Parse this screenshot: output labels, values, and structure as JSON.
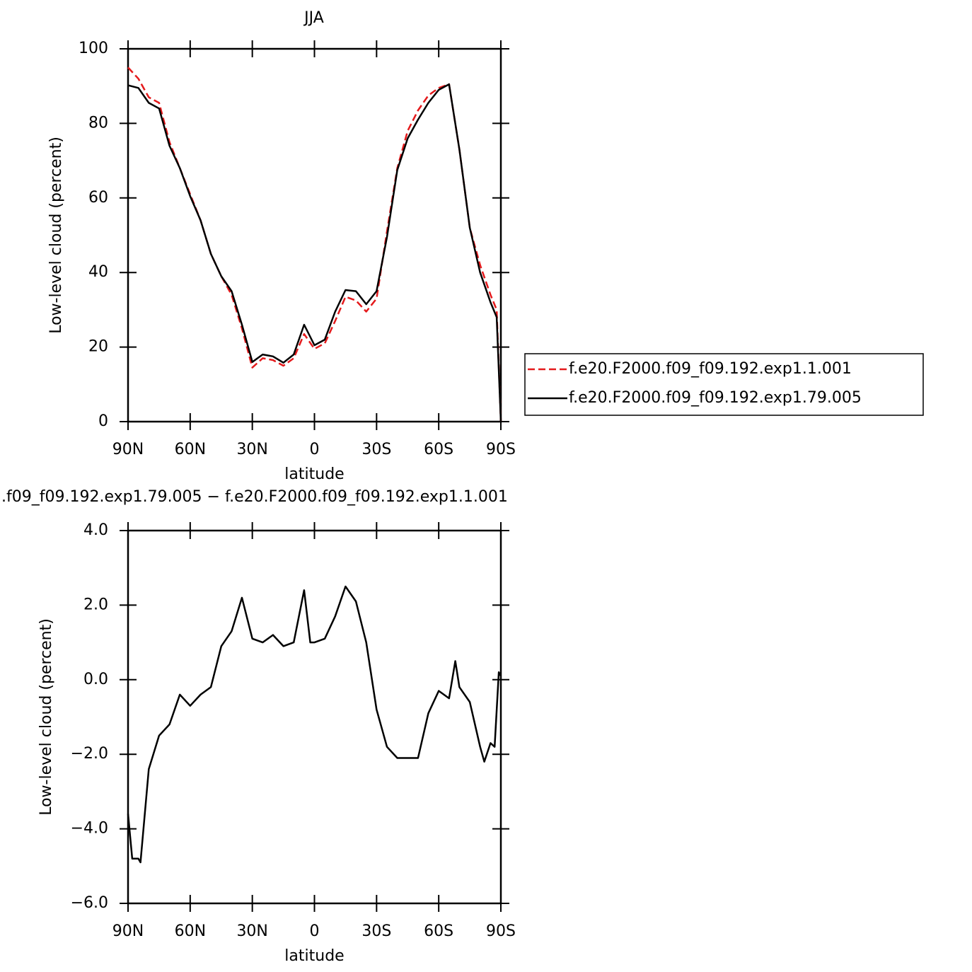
{
  "chart_data": [
    {
      "type": "line",
      "title": "JJA",
      "xlabel": "latitude",
      "ylabel": "Low-level cloud (percent)",
      "x": [
        90,
        85,
        80,
        75,
        70,
        65,
        60,
        55,
        50,
        45,
        40,
        35,
        30,
        25,
        20,
        15,
        10,
        5,
        0,
        -5,
        -10,
        -15,
        -20,
        -25,
        -30,
        -35,
        -40,
        -45,
        -50,
        -55,
        -60,
        -65,
        -70,
        -75,
        -80,
        -85,
        -88,
        -90
      ],
      "series": [
        {
          "name": "f.e20.F2000.f09_f09.192.exp1.1.001",
          "color": "#e41a1c",
          "dashed": true,
          "values": [
            95,
            92,
            87,
            85.5,
            75,
            68,
            61,
            54,
            45,
            39,
            34,
            25,
            14.5,
            17,
            16.5,
            15,
            17,
            23.5,
            19.5,
            21,
            27,
            33.5,
            32.5,
            29.5,
            33,
            51,
            68,
            78,
            83.5,
            87.5,
            89.5,
            90.5,
            73,
            52,
            42,
            34,
            30,
            0
          ]
        },
        {
          "name": "f.e20.F2000.f09_f09.192.exp1.79.005",
          "color": "#000000",
          "dashed": false,
          "values": [
            90.2,
            89.5,
            85.5,
            84,
            74,
            68,
            60.5,
            54,
            45,
            39,
            35,
            26,
            16,
            18,
            17.5,
            15.8,
            18,
            26,
            20.5,
            22,
            29.5,
            35.3,
            35,
            31.5,
            35,
            49.5,
            67.5,
            76,
            81,
            85.5,
            89,
            90.5,
            73,
            52,
            40,
            32,
            28,
            0
          ]
        }
      ],
      "xlim": [
        90,
        -90
      ],
      "xticks": [
        {
          "value": 90,
          "label": "90N"
        },
        {
          "value": 60,
          "label": "60N"
        },
        {
          "value": 30,
          "label": "30N"
        },
        0,
        {
          "value": -30,
          "label": "30S"
        },
        {
          "value": -60,
          "label": "60S"
        },
        {
          "value": -90,
          "label": "90S"
        }
      ],
      "ylim": [
        0,
        100
      ],
      "yticks": [
        0,
        20,
        40,
        60,
        80,
        100
      ],
      "legend": "right"
    },
    {
      "type": "line",
      "title": ".f09_f09.192.exp1.79.005 − f.e20.F2000.f09_f09.192.exp1.1.001",
      "xlabel": "latitude",
      "ylabel": "Low-level cloud (percent)",
      "x": [
        90,
        88,
        85,
        84,
        80,
        75,
        70,
        65,
        60,
        55,
        50,
        45,
        40,
        35,
        30,
        25,
        20,
        15,
        10,
        5,
        2,
        0,
        -5,
        -10,
        -15,
        -20,
        -25,
        -30,
        -35,
        -40,
        -45,
        -50,
        -55,
        -60,
        -65,
        -68,
        -70,
        -75,
        -80,
        -82,
        -85,
        -87,
        -89,
        -90
      ],
      "series": [
        {
          "color": "#000000",
          "dashed": false,
          "values": [
            -3.6,
            -4.8,
            -4.8,
            -4.9,
            -2.4,
            -1.5,
            -1.2,
            -0.4,
            -0.7,
            -0.4,
            -0.2,
            0.9,
            1.3,
            2.2,
            1.1,
            1.0,
            1.2,
            0.9,
            1.0,
            2.4,
            1.0,
            1.0,
            1.1,
            1.7,
            2.5,
            2.1,
            1.0,
            -0.8,
            -1.8,
            -2.1,
            -2.1,
            -2.1,
            -0.9,
            -0.3,
            -0.5,
            0.5,
            -0.2,
            -0.6,
            -1.8,
            -2.2,
            -1.7,
            -1.8,
            0.2,
            0.1
          ]
        }
      ],
      "xlim": [
        90,
        -90
      ],
      "xticks": [
        {
          "value": 90,
          "label": "90N"
        },
        {
          "value": 60,
          "label": "60N"
        },
        {
          "value": 30,
          "label": "30N"
        },
        0,
        {
          "value": -30,
          "label": "30S"
        },
        {
          "value": -60,
          "label": "60S"
        },
        {
          "value": -90,
          "label": "90S"
        }
      ],
      "ylim": [
        -6,
        4
      ],
      "yticks": [
        {
          "value": -6,
          "label": "−6.0"
        },
        {
          "value": -4,
          "label": "−4.0"
        },
        {
          "value": -2,
          "label": "−2.0"
        },
        {
          "value": 0,
          "label": "0.0"
        },
        {
          "value": 2,
          "label": "2.0"
        },
        {
          "value": 4,
          "label": "4.0"
        }
      ]
    }
  ]
}
